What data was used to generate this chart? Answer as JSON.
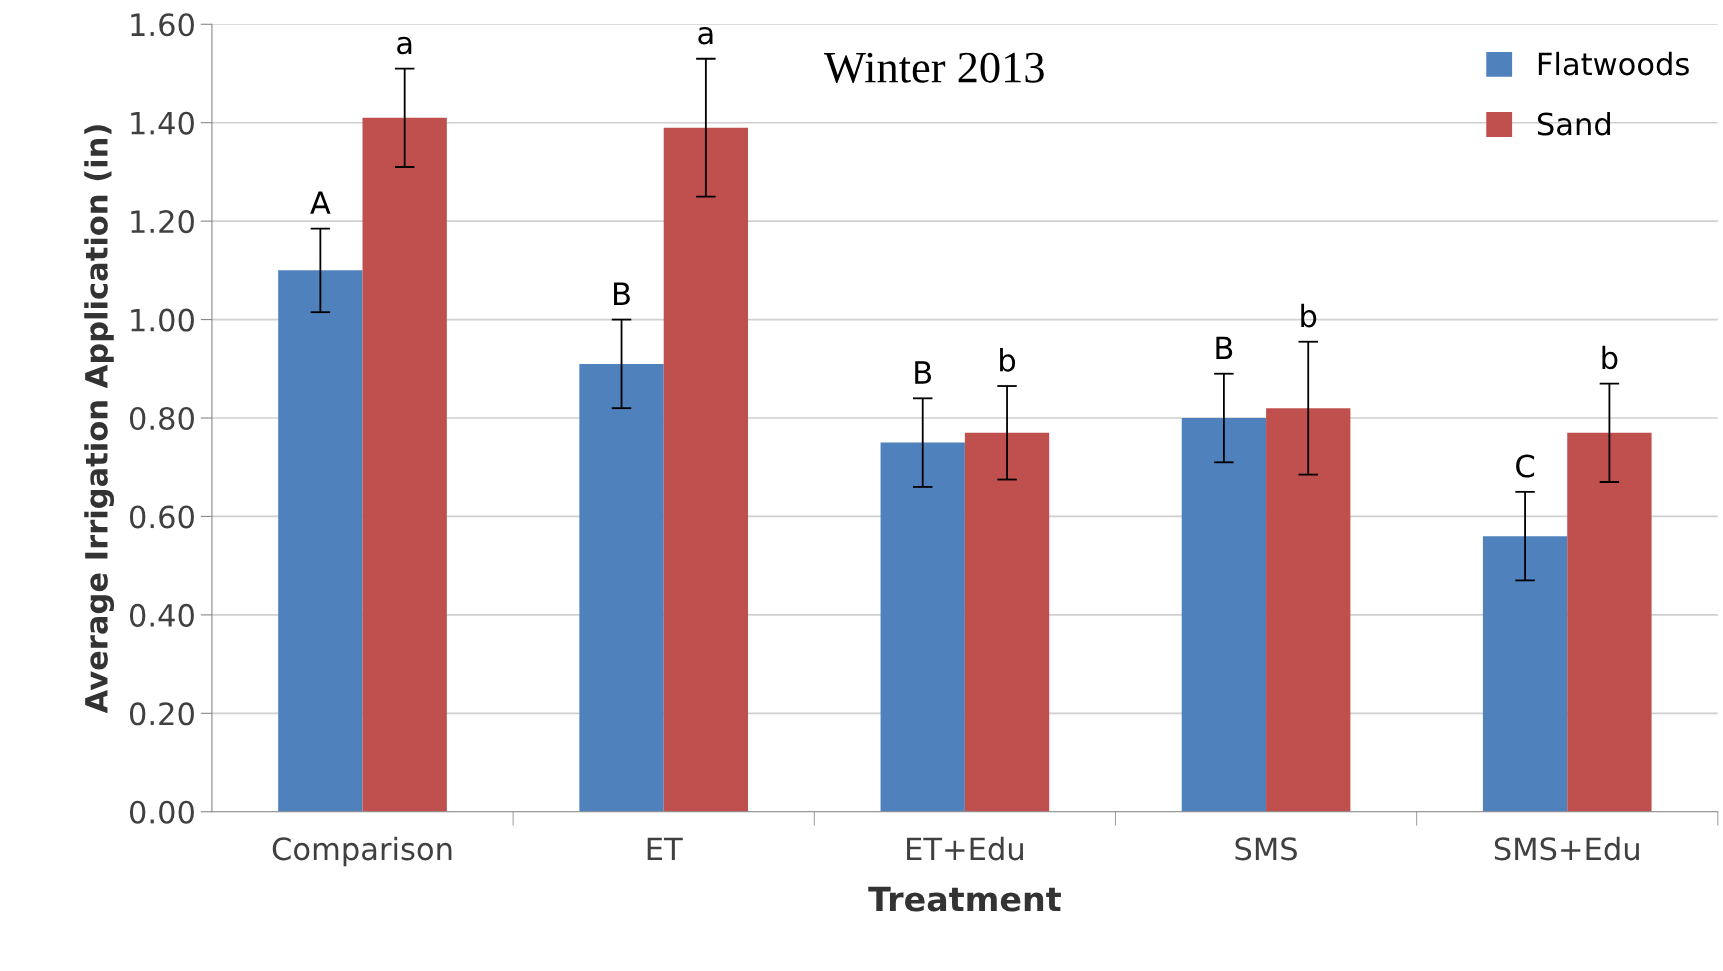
{
  "chart_data": {
    "type": "bar",
    "title": "Winter 2013",
    "xlabel": "Treatment",
    "ylabel": "Average Irrigation Application (in)",
    "categories": [
      "Comparison",
      "ET",
      "ET+Edu",
      "SMS",
      "SMS+Edu"
    ],
    "series": [
      {
        "name": "Flatwoods",
        "color": "#4f81bd",
        "values": [
          1.1,
          0.91,
          0.75,
          0.8,
          0.56
        ],
        "errors": [
          0.085,
          0.09,
          0.09,
          0.09,
          0.09
        ],
        "value_labels": [
          "A",
          "B",
          "B",
          "B",
          "C"
        ]
      },
      {
        "name": "Sand",
        "color": "#c0504d",
        "values": [
          1.41,
          1.39,
          0.77,
          0.82,
          0.77
        ],
        "errors": [
          0.1,
          0.14,
          0.095,
          0.135,
          0.1
        ],
        "value_labels": [
          "a",
          "a",
          "b",
          "b",
          "b"
        ]
      }
    ],
    "ylim": [
      0,
      1.6
    ],
    "yticks": [
      {
        "value": 0,
        "label": "0.00"
      },
      {
        "value": 0.2,
        "label": "0.20"
      },
      {
        "value": 0.4,
        "label": "0.40"
      },
      {
        "value": 0.6,
        "label": "0.60"
      },
      {
        "value": 0.8,
        "label": "0.80"
      },
      {
        "value": 1.0,
        "label": "1.00"
      },
      {
        "value": 1.2,
        "label": "1.20"
      },
      {
        "value": 1.4,
        "label": "1.40"
      },
      {
        "value": 1.6,
        "label": "1.60"
      }
    ],
    "grid": "y",
    "legend": "top right"
  }
}
